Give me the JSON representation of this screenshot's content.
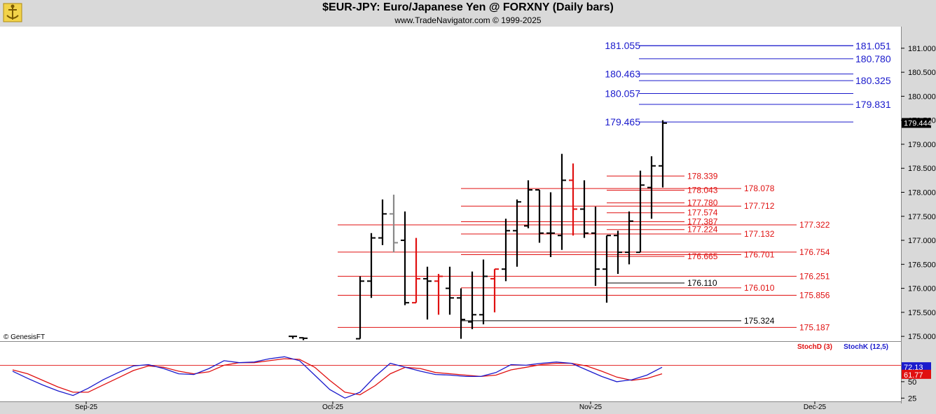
{
  "header": {
    "title": "$EUR-JPY:  Euro/Japanese Yen @ FORXNY  (Daily bars)",
    "subtitle": "www.TradeNavigator.com © 1999-2025"
  },
  "copyright": "© GenesisFT",
  "colors": {
    "blue": "#1a1acc",
    "red": "#e01010",
    "black": "#000000",
    "bg": "#ffffff",
    "panel": "#d9d9d9"
  },
  "chart_data": {
    "type": "ohlc",
    "ylim": [
      174.9,
      181.45
    ],
    "price_axis_ticks": [
      "181.000",
      "180.500",
      "180.000",
      "179.500",
      "179.000",
      "178.500",
      "178.000",
      "177.500",
      "177.000",
      "176.500",
      "176.000",
      "175.500",
      "175.000"
    ],
    "tick_values": [
      181.0,
      180.5,
      180.0,
      179.5,
      179.0,
      178.5,
      178.0,
      177.5,
      177.0,
      176.5,
      176.0,
      175.5,
      175.0
    ],
    "last_price": "179.444",
    "x_axis_labels": [
      "Sep-25",
      "Oct-25",
      "Nov-25",
      "Dec-25"
    ],
    "bars": [
      {
        "d": "Sep-29",
        "h": 175.0,
        "l": 174.95,
        "o": 175.0,
        "c": 175.0,
        "col": "black"
      },
      {
        "d": "Oct-01",
        "h": 174.98,
        "l": 174.92,
        "o": 174.97,
        "c": 174.96,
        "col": "black"
      },
      {
        "d": "Oct-08",
        "h": 176.25,
        "l": 174.95,
        "o": 174.95,
        "c": 176.15,
        "col": "black"
      },
      {
        "d": "Oct-09",
        "h": 177.15,
        "l": 175.8,
        "o": 176.15,
        "c": 177.05,
        "col": "black"
      },
      {
        "d": "Oct-10",
        "h": 177.85,
        "l": 176.9,
        "o": 177.05,
        "c": 177.55,
        "col": "black"
      },
      {
        "d": "Oct-13",
        "h": 177.95,
        "l": 176.75,
        "o": 177.55,
        "c": 176.95,
        "col": "gray"
      },
      {
        "d": "Oct-14",
        "h": 177.6,
        "l": 175.65,
        "o": 177.0,
        "c": 175.7,
        "col": "black"
      },
      {
        "d": "Oct-15",
        "h": 177.05,
        "l": 175.7,
        "o": 175.7,
        "c": 176.2,
        "col": "red"
      },
      {
        "d": "Oct-16",
        "h": 176.45,
        "l": 175.35,
        "o": 176.2,
        "c": 176.15,
        "col": "black"
      },
      {
        "d": "Oct-17",
        "h": 176.3,
        "l": 175.45,
        "o": 176.15,
        "c": 176.25,
        "col": "red"
      },
      {
        "d": "Oct-20",
        "h": 176.45,
        "l": 175.45,
        "o": 176.0,
        "c": 175.8,
        "col": "black"
      },
      {
        "d": "Oct-21",
        "h": 176.0,
        "l": 174.95,
        "o": 175.8,
        "c": 175.35,
        "col": "black"
      },
      {
        "d": "Oct-22",
        "h": 176.35,
        "l": 175.15,
        "o": 175.3,
        "c": 175.45,
        "col": "black"
      },
      {
        "d": "Oct-23",
        "h": 176.6,
        "l": 175.25,
        "o": 175.45,
        "c": 176.25,
        "col": "black"
      },
      {
        "d": "Oct-24",
        "h": 176.4,
        "l": 175.5,
        "o": 176.2,
        "c": 176.4,
        "col": "red"
      },
      {
        "d": "Oct-27",
        "h": 177.45,
        "l": 176.15,
        "o": 176.4,
        "c": 177.2,
        "col": "black"
      },
      {
        "d": "Oct-28",
        "h": 177.85,
        "l": 176.45,
        "o": 177.2,
        "c": 177.8,
        "col": "black"
      },
      {
        "d": "Oct-29",
        "h": 178.25,
        "l": 177.25,
        "o": 177.3,
        "c": 178.05,
        "col": "black"
      },
      {
        "d": "Oct-30",
        "h": 178.05,
        "l": 176.95,
        "o": 178.05,
        "c": 177.15,
        "col": "black"
      },
      {
        "d": "Oct-31",
        "h": 178.0,
        "l": 176.65,
        "o": 177.15,
        "c": 177.15,
        "col": "black"
      },
      {
        "d": "Nov-03",
        "h": 178.8,
        "l": 176.8,
        "o": 177.1,
        "c": 178.25,
        "col": "black"
      },
      {
        "d": "Nov-04",
        "h": 178.6,
        "l": 177.1,
        "o": 178.25,
        "c": 177.65,
        "col": "red"
      },
      {
        "d": "Nov-05",
        "h": 178.25,
        "l": 177.05,
        "o": 177.65,
        "c": 177.15,
        "col": "black"
      },
      {
        "d": "Nov-06",
        "h": 177.7,
        "l": 176.05,
        "o": 177.15,
        "c": 176.4,
        "col": "black"
      },
      {
        "d": "Nov-07",
        "h": 177.1,
        "l": 175.7,
        "o": 176.4,
        "c": 177.1,
        "col": "black"
      },
      {
        "d": "Nov-10",
        "h": 177.2,
        "l": 176.3,
        "o": 177.1,
        "c": 176.75,
        "col": "black"
      },
      {
        "d": "Nov-11",
        "h": 177.6,
        "l": 176.5,
        "o": 176.75,
        "c": 177.4,
        "col": "black"
      },
      {
        "d": "Nov-12",
        "h": 178.45,
        "l": 176.75,
        "o": 176.75,
        "c": 178.15,
        "col": "black"
      },
      {
        "d": "Nov-13",
        "h": 178.75,
        "l": 177.45,
        "o": 178.1,
        "c": 178.55,
        "col": "black"
      },
      {
        "d": "Nov-14",
        "h": 179.5,
        "l": 178.1,
        "o": 178.55,
        "c": 179.44,
        "col": "black"
      }
    ],
    "levels": [
      {
        "value": 181.055,
        "label": "181.055",
        "color": "blue",
        "side": "left"
      },
      {
        "value": 181.051,
        "label": "181.051",
        "color": "blue",
        "side": "right"
      },
      {
        "value": 180.78,
        "label": "180.780",
        "color": "blue",
        "side": "right"
      },
      {
        "value": 180.463,
        "label": "180.463",
        "color": "blue",
        "side": "left"
      },
      {
        "value": 180.325,
        "label": "180.325",
        "color": "blue",
        "side": "right"
      },
      {
        "value": 180.057,
        "label": "180.057",
        "color": "blue",
        "side": "left"
      },
      {
        "value": 179.831,
        "label": "179.831",
        "color": "blue",
        "side": "right"
      },
      {
        "value": 179.465,
        "label": "179.465",
        "color": "blue",
        "side": "left"
      },
      {
        "value": 178.339,
        "label": "178.339",
        "color": "red",
        "side": "right"
      },
      {
        "value": 178.078,
        "label": "178.078",
        "color": "red",
        "side": "right"
      },
      {
        "value": 178.043,
        "label": "178.043",
        "color": "red",
        "side": "right"
      },
      {
        "value": 177.78,
        "label": "177.780",
        "color": "red",
        "side": "right"
      },
      {
        "value": 177.712,
        "label": "177.712",
        "color": "red",
        "side": "right"
      },
      {
        "value": 177.574,
        "label": "177.574",
        "color": "red",
        "side": "right"
      },
      {
        "value": 177.387,
        "label": "177.387",
        "color": "red",
        "side": "right"
      },
      {
        "value": 177.322,
        "label": "177.322",
        "color": "red",
        "side": "right"
      },
      {
        "value": 177.224,
        "label": "177.224",
        "color": "red",
        "side": "right"
      },
      {
        "value": 177.132,
        "label": "177.132",
        "color": "red",
        "side": "right"
      },
      {
        "value": 176.754,
        "label": "176.754",
        "color": "red",
        "side": "right"
      },
      {
        "value": 176.701,
        "label": "176.701",
        "color": "red",
        "side": "right"
      },
      {
        "value": 176.665,
        "label": "176.665",
        "color": "red",
        "side": "right"
      },
      {
        "value": 176.251,
        "label": "176.251",
        "color": "red",
        "side": "right"
      },
      {
        "value": 176.11,
        "label": "176.110",
        "color": "black",
        "side": "right"
      },
      {
        "value": 176.01,
        "label": "176.010",
        "color": "red",
        "side": "right"
      },
      {
        "value": 175.856,
        "label": "175.856",
        "color": "red",
        "side": "right"
      },
      {
        "value": 175.324,
        "label": "175.324",
        "color": "black",
        "side": "right"
      },
      {
        "value": 175.187,
        "label": "175.187",
        "color": "red",
        "side": "right"
      }
    ],
    "stochastic": {
      "d_label": "StochD (3)",
      "k_label": "StochK (12,5)",
      "d_value": "61.77",
      "k_value": "72.13",
      "ticks": [
        "50",
        "25"
      ],
      "tick_values": [
        50,
        25
      ],
      "ylim": [
        20,
        100
      ],
      "k_series": [
        66,
        55,
        45,
        36,
        29,
        40,
        53,
        64,
        74,
        76,
        70,
        62,
        61,
        70,
        82,
        79,
        80,
        85,
        88,
        82,
        60,
        38,
        25,
        34,
        58,
        78,
        72,
        66,
        61,
        60,
        58,
        58,
        64,
        76,
        75,
        78,
        80,
        78,
        68,
        58,
        50,
        53,
        60,
        72
      ],
      "d_series": [
        68,
        62,
        52,
        42,
        34,
        34,
        45,
        56,
        67,
        74,
        72,
        66,
        62,
        65,
        75,
        79,
        79,
        82,
        85,
        84,
        72,
        52,
        34,
        30,
        44,
        62,
        72,
        70,
        64,
        62,
        60,
        58,
        60,
        68,
        72,
        76,
        78,
        78,
        74,
        66,
        57,
        52,
        55,
        62
      ]
    }
  }
}
